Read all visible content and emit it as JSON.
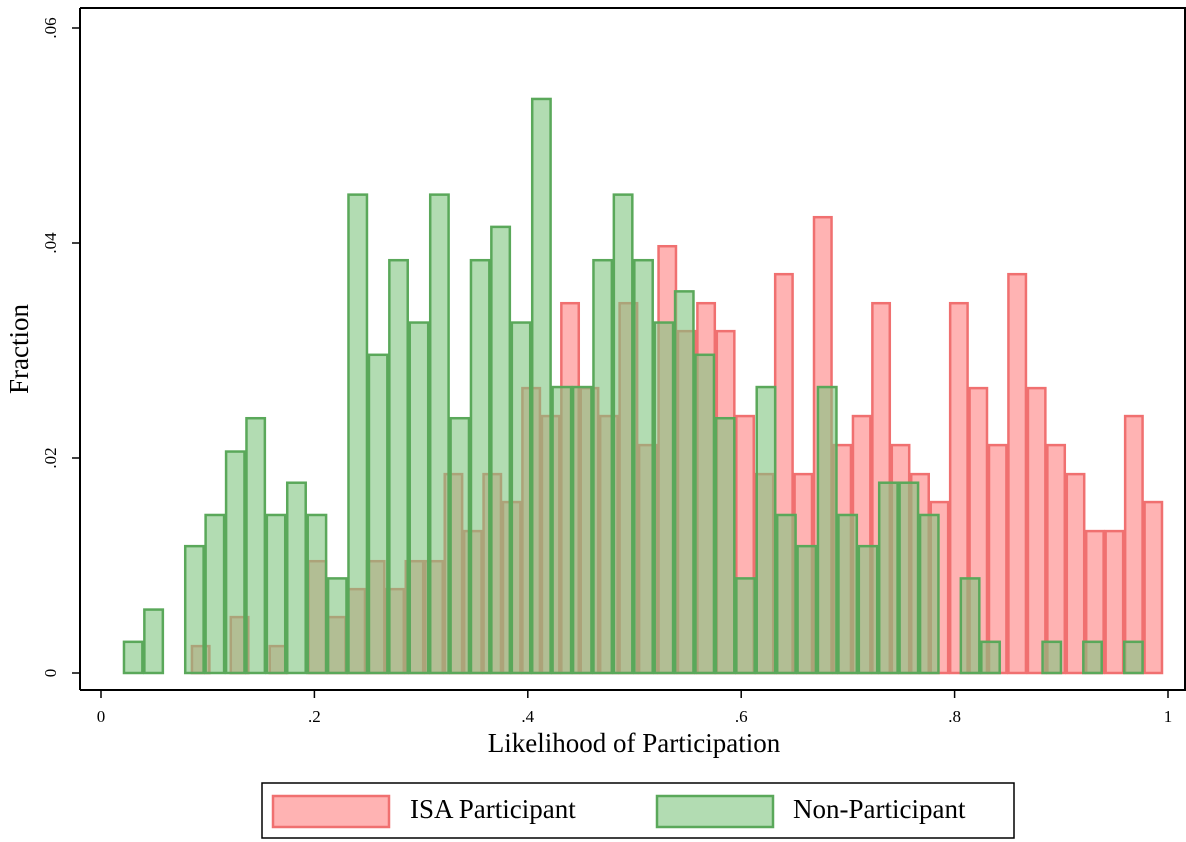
{
  "chart_data": {
    "type": "histogram",
    "x_label": "Likelihood of Participation",
    "y_label": "Fraction",
    "xlim": [
      0,
      1
    ],
    "ylim": [
      0,
      0.06
    ],
    "xticks": [
      0,
      {
        "value": 0.2,
        "label": ".2"
      },
      {
        "value": 0.4,
        "label": ".4"
      },
      {
        "value": 0.6,
        "label": ".6"
      },
      {
        "value": 0.8,
        "label": ".8"
      },
      1
    ],
    "yticks": [
      0,
      {
        "value": 0.02,
        "label": ".02"
      },
      {
        "value": 0.04,
        "label": ".04"
      },
      {
        "value": 0.06,
        "label": ".06"
      }
    ],
    "grid": false,
    "legend": "bottom",
    "series": [
      {
        "name": "ISA Participant",
        "color": "#ff8080",
        "edge_color": "#f07070",
        "bins": [
          0.0843,
          0.1025,
          0.1207,
          0.139,
          0.1572,
          0.1754,
          0.1936,
          0.2118,
          0.2301,
          0.2483,
          0.2665,
          0.2847,
          0.3029,
          0.3212,
          0.3394,
          0.3576,
          0.3758,
          0.394,
          0.4123,
          0.4305,
          0.4487,
          0.4669,
          0.4851,
          0.5034,
          0.5216,
          0.5398,
          0.558,
          0.5762,
          0.5945,
          0.6127,
          0.6309,
          0.6491,
          0.6673,
          0.6856,
          0.7038,
          0.722,
          0.7402,
          0.7584,
          0.7767,
          0.7949,
          0.8131,
          0.8313,
          0.8495,
          0.8678,
          0.886,
          0.9042,
          0.9224,
          0.9406,
          0.9589,
          0.9771,
          0.9953
        ],
        "values": [
          0.0025,
          0,
          0.0052,
          0,
          0.0025,
          0,
          0.0104,
          0.0052,
          0.0078,
          0.0104,
          0.0078,
          0.0104,
          0.0104,
          0.0185,
          0.0132,
          0.0185,
          0.0159,
          0.0265,
          0.0239,
          0.0344,
          0.0265,
          0.0239,
          0.0344,
          0.0212,
          0.0397,
          0.0318,
          0.0344,
          0.0318,
          0.0239,
          0.0185,
          0.0371,
          0.0185,
          0.0424,
          0.0212,
          0.0239,
          0.0344,
          0.0212,
          0.0185,
          0.0159,
          0.0344,
          0.0265,
          0.0212,
          0.0371,
          0.0265,
          0.0212,
          0.0185,
          0.0132,
          0.0132,
          0.0239,
          0.0159
        ]
      },
      {
        "name": "Non-Participant",
        "color": "#7fc47f",
        "edge_color": "#5aa85a",
        "bins": [
          0.0206,
          0.0397,
          0.0589,
          0.078,
          0.0971,
          0.1163,
          0.1354,
          0.1545,
          0.1736,
          0.1928,
          0.2119,
          0.231,
          0.2502,
          0.2693,
          0.2884,
          0.3076,
          0.3267,
          0.3458,
          0.3649,
          0.3841,
          0.4032,
          0.4223,
          0.4415,
          0.4606,
          0.4797,
          0.4989,
          0.518,
          0.5371,
          0.5562,
          0.5754,
          0.5945,
          0.6136,
          0.6328,
          0.6519,
          0.671,
          0.6902,
          0.7093,
          0.7284,
          0.7475,
          0.7667,
          0.7858,
          0.8049,
          0.8241,
          0.8432,
          0.8623,
          0.8815,
          0.9006,
          0.9197,
          0.9388,
          0.958,
          0.9771
        ],
        "values": [
          0.0029,
          0.0059,
          0,
          0.0118,
          0.0147,
          0.0206,
          0.0237,
          0.0147,
          0.0177,
          0.0147,
          0.0088,
          0.0445,
          0.0296,
          0.0384,
          0.0326,
          0.0445,
          0.0237,
          0.0384,
          0.0415,
          0.0326,
          0.0534,
          0.0266,
          0.0266,
          0.0384,
          0.0445,
          0.0384,
          0.0326,
          0.0355,
          0.0296,
          0.0237,
          0.0088,
          0.0266,
          0.0147,
          0.0118,
          0.0266,
          0.0147,
          0.0118,
          0.0177,
          0.0177,
          0.0147,
          0,
          0.0088,
          0.0029,
          0,
          0,
          0.0029,
          0,
          0.0029,
          0,
          0.0029
        ]
      }
    ]
  }
}
